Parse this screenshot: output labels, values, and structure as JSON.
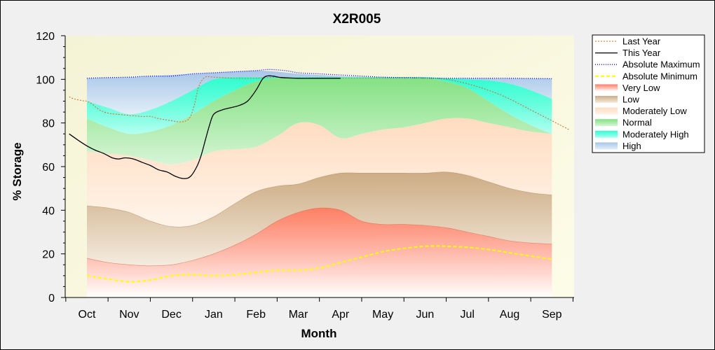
{
  "chart_data": {
    "type": "area",
    "title": "X2R005",
    "xlabel": "Month",
    "ylabel": "% Storage",
    "ylim": [
      0,
      120
    ],
    "yticks": [
      0,
      20,
      40,
      60,
      80,
      100,
      120
    ],
    "months": [
      "Oct",
      "Nov",
      "Dec",
      "Jan",
      "Feb",
      "Mar",
      "Apr",
      "May",
      "Jun",
      "Jul",
      "Aug",
      "Sep"
    ],
    "legend_position": "top-right",
    "legend": [
      {
        "name": "Last Year",
        "kind": "line",
        "color": "#d2691e",
        "dash": "2,2",
        "width": 1
      },
      {
        "name": "This Year",
        "kind": "line",
        "color": "#000000",
        "dash": "",
        "width": 1.3
      },
      {
        "name": "Absolute Maximum",
        "kind": "line",
        "color": "#0000ff",
        "dash": "1,2",
        "width": 1.3
      },
      {
        "name": "Absolute Minimum",
        "kind": "line",
        "color": "#ffff00",
        "dash": "5,3",
        "width": 2
      },
      {
        "name": "Very Low",
        "kind": "band",
        "color": "#ff6a4f"
      },
      {
        "name": "Low",
        "kind": "band",
        "color": "#c8a47a"
      },
      {
        "name": "Moderately Low",
        "kind": "band",
        "color": "#ffdcc0"
      },
      {
        "name": "Normal",
        "kind": "band",
        "color": "#7fe07f"
      },
      {
        "name": "Moderately High",
        "kind": "band",
        "color": "#00ffcc"
      },
      {
        "name": "High",
        "kind": "band",
        "color": "#6fa8dc"
      }
    ],
    "bands": {
      "x": [
        0,
        0.5,
        1,
        1.5,
        2,
        2.5,
        3,
        3.5,
        4,
        4.5,
        5,
        5.5,
        6,
        6.5,
        7,
        7.5,
        8,
        8.5,
        9,
        9.5,
        10,
        10.5,
        11
      ],
      "very_low_top": [
        18,
        16,
        15,
        14.5,
        15,
        17,
        20,
        24,
        29,
        35,
        39,
        41,
        40,
        35,
        33.5,
        33.5,
        33,
        32,
        30,
        28,
        26,
        25,
        24.5
      ],
      "low_top": [
        42,
        41,
        39,
        35,
        32.5,
        33,
        37,
        43,
        48.5,
        51,
        52,
        55,
        57,
        57,
        57,
        57,
        57,
        57.5,
        56,
        53,
        50,
        48,
        47
      ],
      "moderately_low_top": [
        67,
        66,
        65,
        63,
        61,
        63,
        67,
        68,
        69,
        74,
        80,
        79,
        73,
        75,
        77,
        78,
        80,
        82,
        82,
        80,
        78,
        76,
        75
      ],
      "normal_top": [
        82,
        78,
        75,
        76,
        79,
        84,
        90,
        95,
        99,
        100.5,
        100.5,
        100.5,
        100.5,
        100.5,
        100.5,
        100.5,
        100.5,
        99,
        96,
        90,
        84,
        79,
        75
      ],
      "moderately_high_top": [
        90,
        87,
        84,
        86,
        90,
        95,
        100,
        101,
        101,
        101,
        101,
        101,
        101,
        101,
        101,
        101,
        101,
        100.5,
        100,
        99.5,
        98,
        95,
        91
      ],
      "high_top": [
        100.5,
        100.8,
        101,
        101.5,
        102,
        102.5,
        103,
        103.5,
        104,
        103.5,
        102.5,
        102,
        101.5,
        101.2,
        101,
        100.8,
        100.6,
        100.5,
        100.5,
        100.5,
        100.5,
        100.4,
        100.3
      ]
    },
    "series": [
      {
        "name": "Absolute Maximum",
        "x": [
          0,
          0.5,
          1,
          1.5,
          2,
          2.5,
          3,
          3.5,
          4,
          4.3,
          4.7,
          5,
          5.5,
          6,
          6.5,
          7,
          7.5,
          8,
          8.5,
          9,
          9.5,
          10,
          10.5,
          11
        ],
        "y": [
          100.5,
          100.8,
          101,
          101.5,
          101.5,
          102.5,
          103,
          103.5,
          104,
          104.5,
          104,
          103,
          102.5,
          102,
          101.5,
          101,
          100.8,
          100.6,
          100.5,
          100.5,
          100.5,
          100.5,
          100.4,
          100.3
        ]
      },
      {
        "name": "Absolute Minimum",
        "x": [
          0,
          0.5,
          1,
          1.5,
          2,
          2.5,
          3,
          3.5,
          4,
          4.5,
          5,
          5.5,
          6,
          6.5,
          7,
          7.5,
          8,
          8.5,
          9,
          9.5,
          10,
          10.5,
          11
        ],
        "y": [
          10,
          8.5,
          7.2,
          8,
          10,
          10.5,
          10,
          10.5,
          11.5,
          12.5,
          12.5,
          13.5,
          16,
          18.5,
          21,
          22.5,
          23.5,
          23.5,
          23,
          22,
          20.5,
          19,
          17.5
        ]
      },
      {
        "name": "Last Year",
        "x": [
          -0.42,
          -0.3,
          -0.1,
          0,
          0.1,
          0.3,
          0.5,
          0.7,
          1,
          1.3,
          1.5,
          1.7,
          2,
          2.2,
          2.35,
          2.45,
          2.55,
          2.65,
          2.8,
          3,
          3.5,
          4,
          4.5,
          5,
          6,
          7,
          8,
          8.5,
          9,
          9.5,
          10,
          10.5,
          11,
          11.4
        ],
        "y": [
          92,
          91,
          90.2,
          90,
          89,
          86,
          84.5,
          84,
          83.5,
          83,
          83,
          82,
          81,
          80.5,
          81,
          83,
          89,
          97,
          101,
          101,
          100.5,
          100.5,
          101,
          100.5,
          100.5,
          100.5,
          100.5,
          100,
          98,
          95,
          91,
          86,
          81,
          77
        ]
      },
      {
        "name": "This Year",
        "x": [
          -0.42,
          -0.2,
          0,
          0.2,
          0.4,
          0.6,
          0.75,
          0.9,
          1.1,
          1.3,
          1.5,
          1.7,
          1.9,
          2.1,
          2.3,
          2.45,
          2.6,
          2.7,
          2.8,
          2.9,
          3,
          3.2,
          3.4,
          3.6,
          3.8,
          4,
          4.15,
          4.25,
          4.4,
          4.6,
          5,
          5.5,
          6
        ],
        "y": [
          75,
          72,
          69.5,
          67.5,
          66,
          64,
          63.5,
          64,
          63.5,
          62,
          60.5,
          58.5,
          57.5,
          55.5,
          54.5,
          55.5,
          60,
          65,
          72,
          79,
          84,
          86,
          87,
          88,
          90,
          95,
          100,
          101.5,
          101.5,
          100.8,
          100.5,
          100.5,
          100.5
        ]
      }
    ]
  }
}
